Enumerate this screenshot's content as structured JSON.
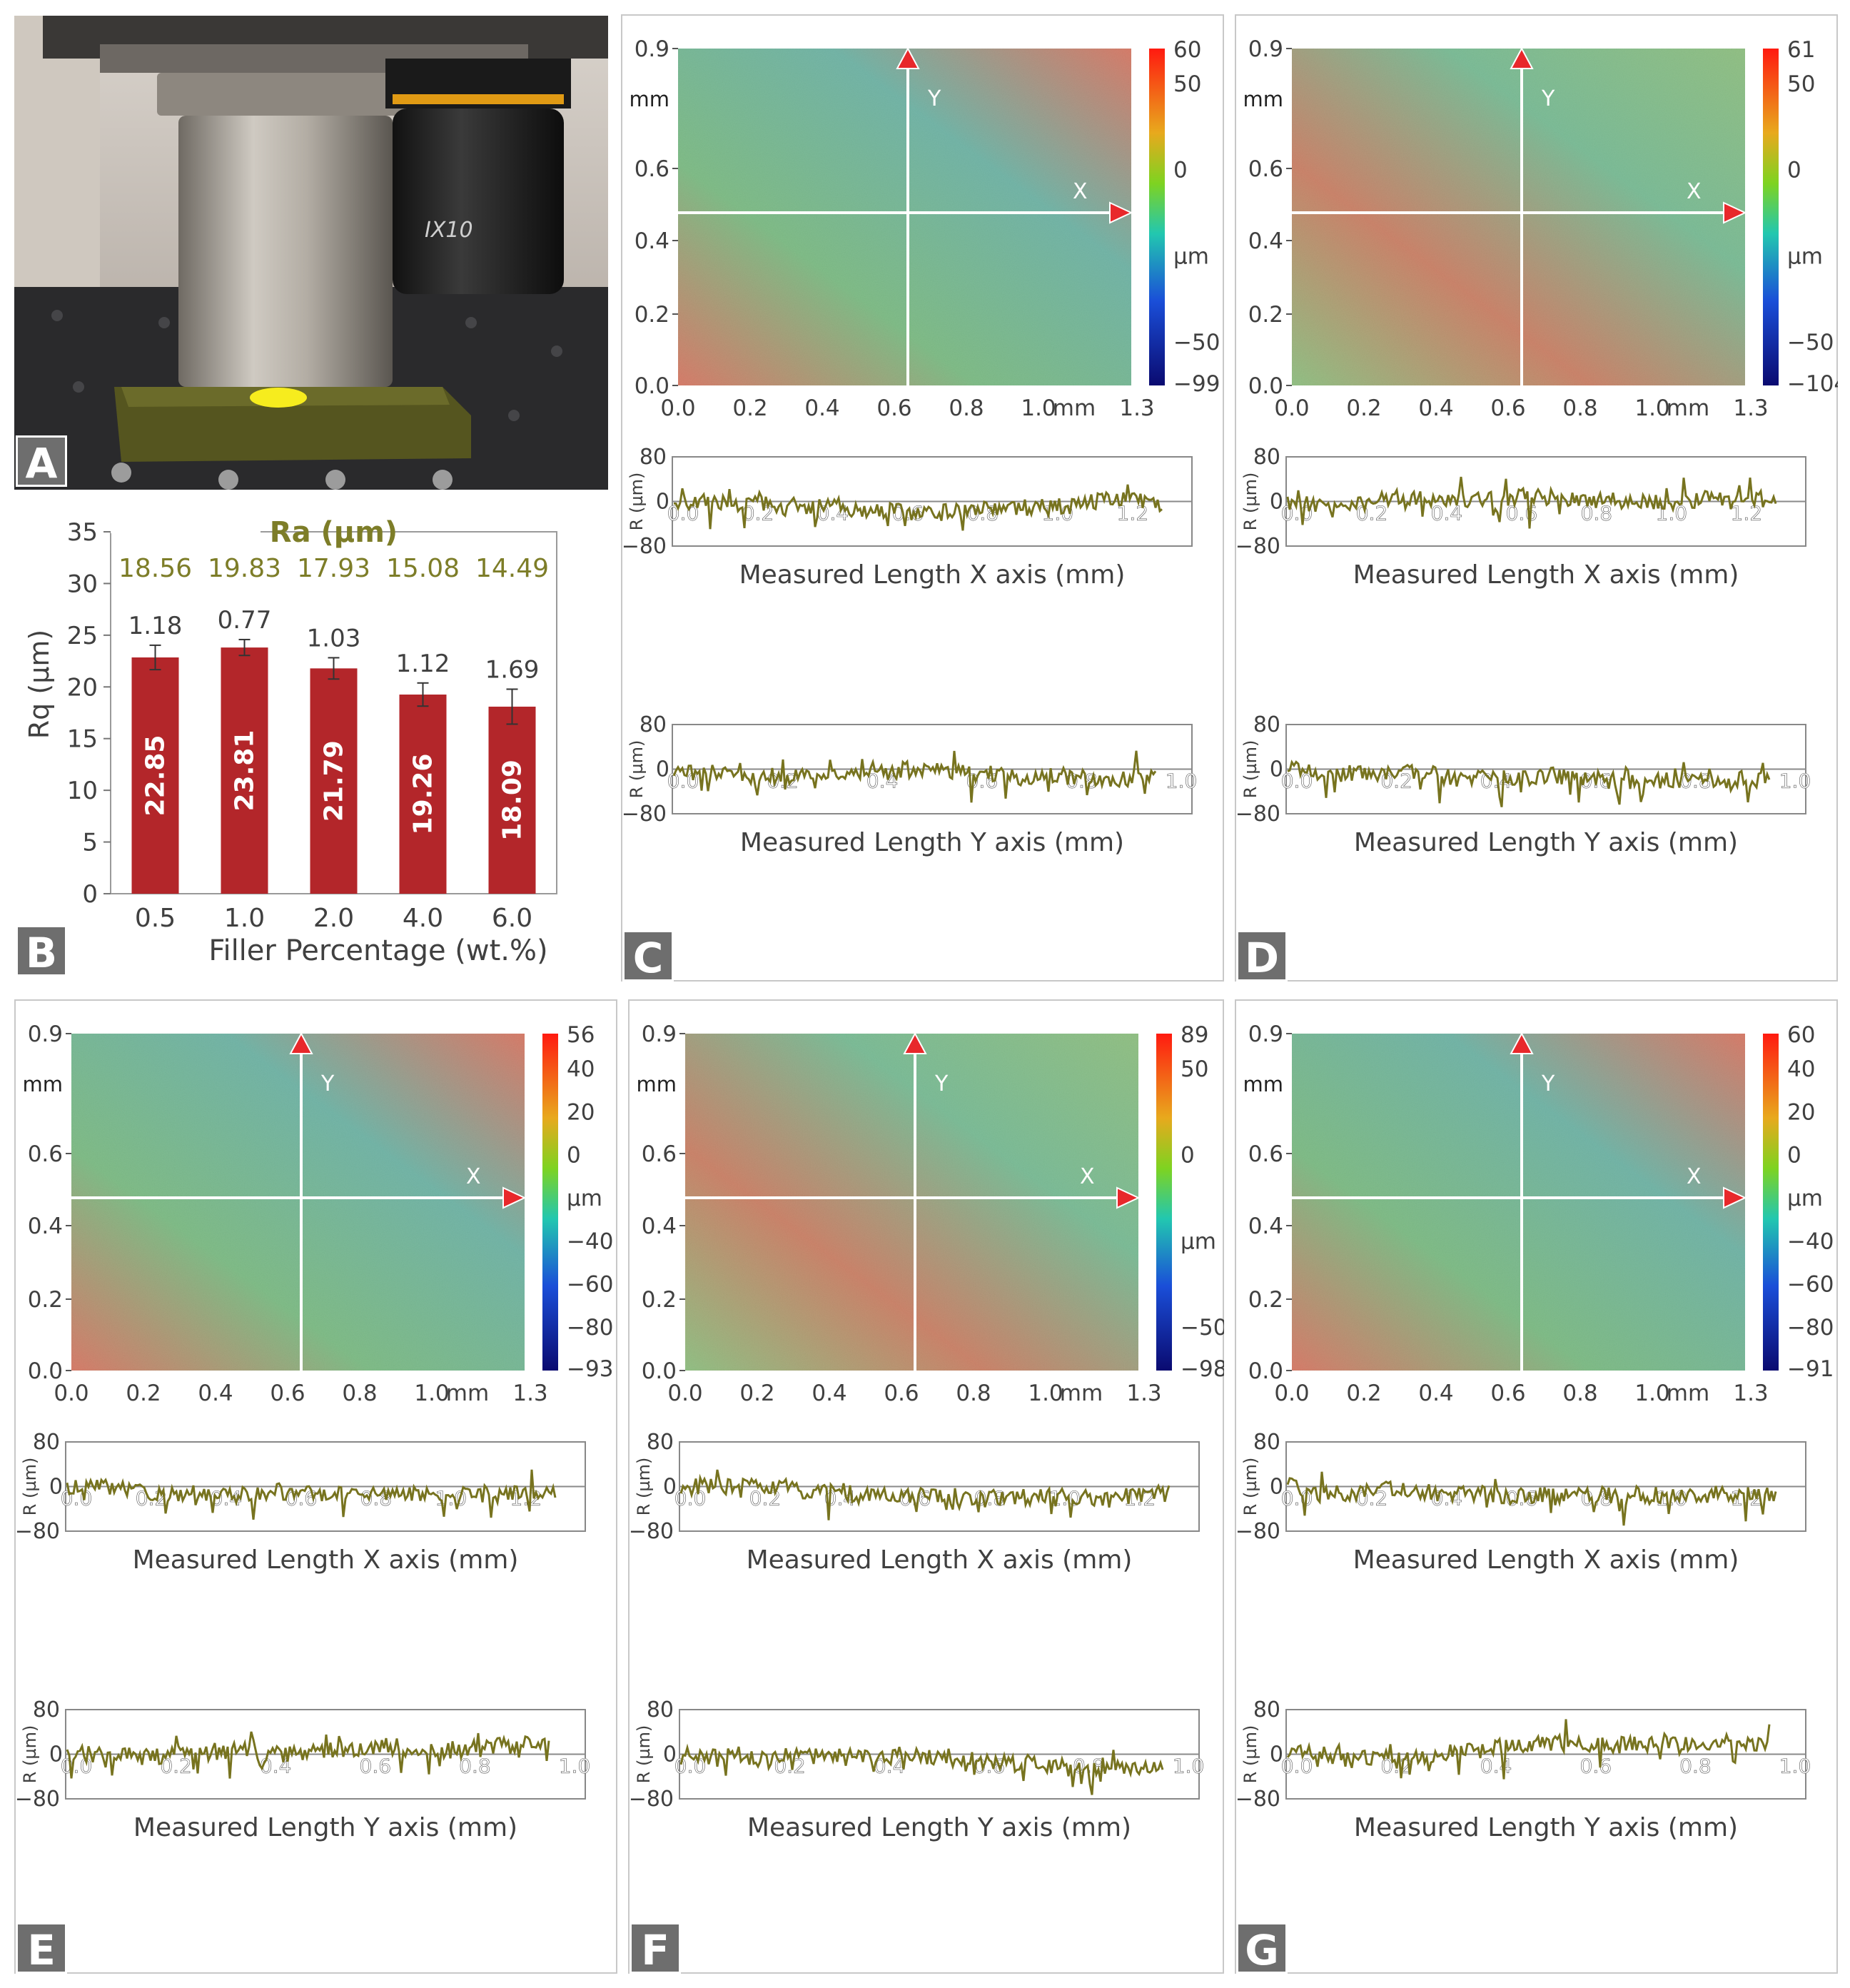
{
  "panels": {
    "A": {
      "label": "A",
      "lens_label": "IX10"
    },
    "B": {
      "label": "B",
      "chart_data": {
        "type": "bar",
        "title": "Ra (µm)",
        "xlabel": "Filler Percentage (wt.%)",
        "ylabel": "Rq (µm)",
        "categories": [
          "0.5",
          "1.0",
          "2.0",
          "4.0",
          "6.0"
        ],
        "values": [
          22.85,
          23.81,
          21.79,
          19.26,
          18.09
        ],
        "value_labels": [
          "22.85",
          "23.81",
          "21.79",
          "19.26",
          "18.09"
        ],
        "errors": [
          1.18,
          0.77,
          1.03,
          1.12,
          1.69
        ],
        "error_labels": [
          "1.18",
          "0.77",
          "1.03",
          "1.12",
          "1.69"
        ],
        "ra_values": [
          "18.56",
          "19.83",
          "17.93",
          "15.08",
          "14.49"
        ],
        "ylim": [
          0,
          35
        ],
        "yticks": [
          "0",
          "5",
          "10",
          "15",
          "20",
          "25",
          "30",
          "35"
        ],
        "bar_color": "#b3262a",
        "ra_color": "#7d7d28"
      }
    },
    "maps": [
      {
        "id": "C",
        "label": "C",
        "cb_top": "60",
        "cb_labels": [
          "50",
          "0",
          "µm",
          "−50"
        ],
        "cb_bottom": "−99",
        "profile_x": {
          "ticks": [
            "0.0",
            "0.2",
            "0.4",
            "0.6",
            "0.8",
            "1.0",
            "1.2"
          ],
          "xmax": 1.28
        },
        "profile_y": {
          "ticks": [
            "0.0",
            "0.2",
            "0.4",
            "0.6",
            "0.8",
            "1.0"
          ],
          "xmax": 0.95
        }
      },
      {
        "id": "D",
        "label": "D",
        "cb_top": "61",
        "cb_labels": [
          "50",
          "0",
          "µm",
          "−50"
        ],
        "cb_bottom": "−104",
        "profile_x": {
          "ticks": [
            "0.0",
            "0.2",
            "0.4",
            "0.6",
            "0.8",
            "1.0",
            "1.2"
          ],
          "xmax": 1.28
        },
        "profile_y": {
          "ticks": [
            "0.0",
            "0.2",
            "0.4",
            "0.6",
            "0.8",
            "1.0"
          ],
          "xmax": 0.95
        }
      },
      {
        "id": "E",
        "label": "E",
        "cb_top": "56",
        "cb_labels": [
          "40",
          "20",
          "0",
          "µm",
          "−40",
          "−60",
          "−80"
        ],
        "cb_bottom": "−93",
        "profile_x": {
          "ticks": [
            "0.0",
            "0.2",
            "0.4",
            "0.6",
            "0.8",
            "1.0",
            "1.2"
          ],
          "xmax": 1.28
        },
        "profile_y": {
          "ticks": [
            "0.0",
            "0.2",
            "0.4",
            "0.6",
            "0.8",
            "1.0"
          ],
          "xmax": 0.95
        }
      },
      {
        "id": "F",
        "label": "F",
        "cb_top": "89",
        "cb_labels": [
          "50",
          "0",
          "µm",
          "−50"
        ],
        "cb_bottom": "−98",
        "profile_x": {
          "ticks": [
            "0.0",
            "0.2",
            "0.4",
            "0.6",
            "0.8",
            "1.0",
            "1.2"
          ],
          "xmax": 1.28
        },
        "profile_y": {
          "ticks": [
            "0.0",
            "0.2",
            "0.4",
            "0.6",
            "0.8",
            "1.0"
          ],
          "xmax": 0.95
        }
      },
      {
        "id": "G",
        "label": "G",
        "cb_top": "60",
        "cb_labels": [
          "40",
          "20",
          "0",
          "µm",
          "−40",
          "−60",
          "−80"
        ],
        "cb_bottom": "−91",
        "profile_x": {
          "ticks": [
            "0.0",
            "0.2",
            "0.4",
            "0.6",
            "0.8",
            "1.0",
            "1.2"
          ],
          "xmax": 1.28
        },
        "profile_y": {
          "ticks": [
            "0.0",
            "0.2",
            "0.4",
            "0.6",
            "0.8",
            "1.0"
          ],
          "xmax": 0.95
        }
      }
    ],
    "map_axes": {
      "y_ticks": [
        "0.0",
        "0.2",
        "0.4",
        "0.6",
        "0.9"
      ],
      "y_unit": "mm",
      "x_ticks": [
        "0.0",
        "0.2",
        "0.4",
        "0.6",
        "0.8",
        "1.0"
      ],
      "x_unit": "mm",
      "x_end": "1.3",
      "axis_x_label": "X",
      "axis_y_label": "Y"
    },
    "profile_axes": {
      "ylabel": "R (µm)",
      "y_top": "80",
      "y_zero": "0",
      "y_bottom": "−80",
      "x_title": "Measured Length X axis (mm)",
      "y_title": "Measured Length Y axis (mm)",
      "line_color": "#77731f"
    }
  }
}
